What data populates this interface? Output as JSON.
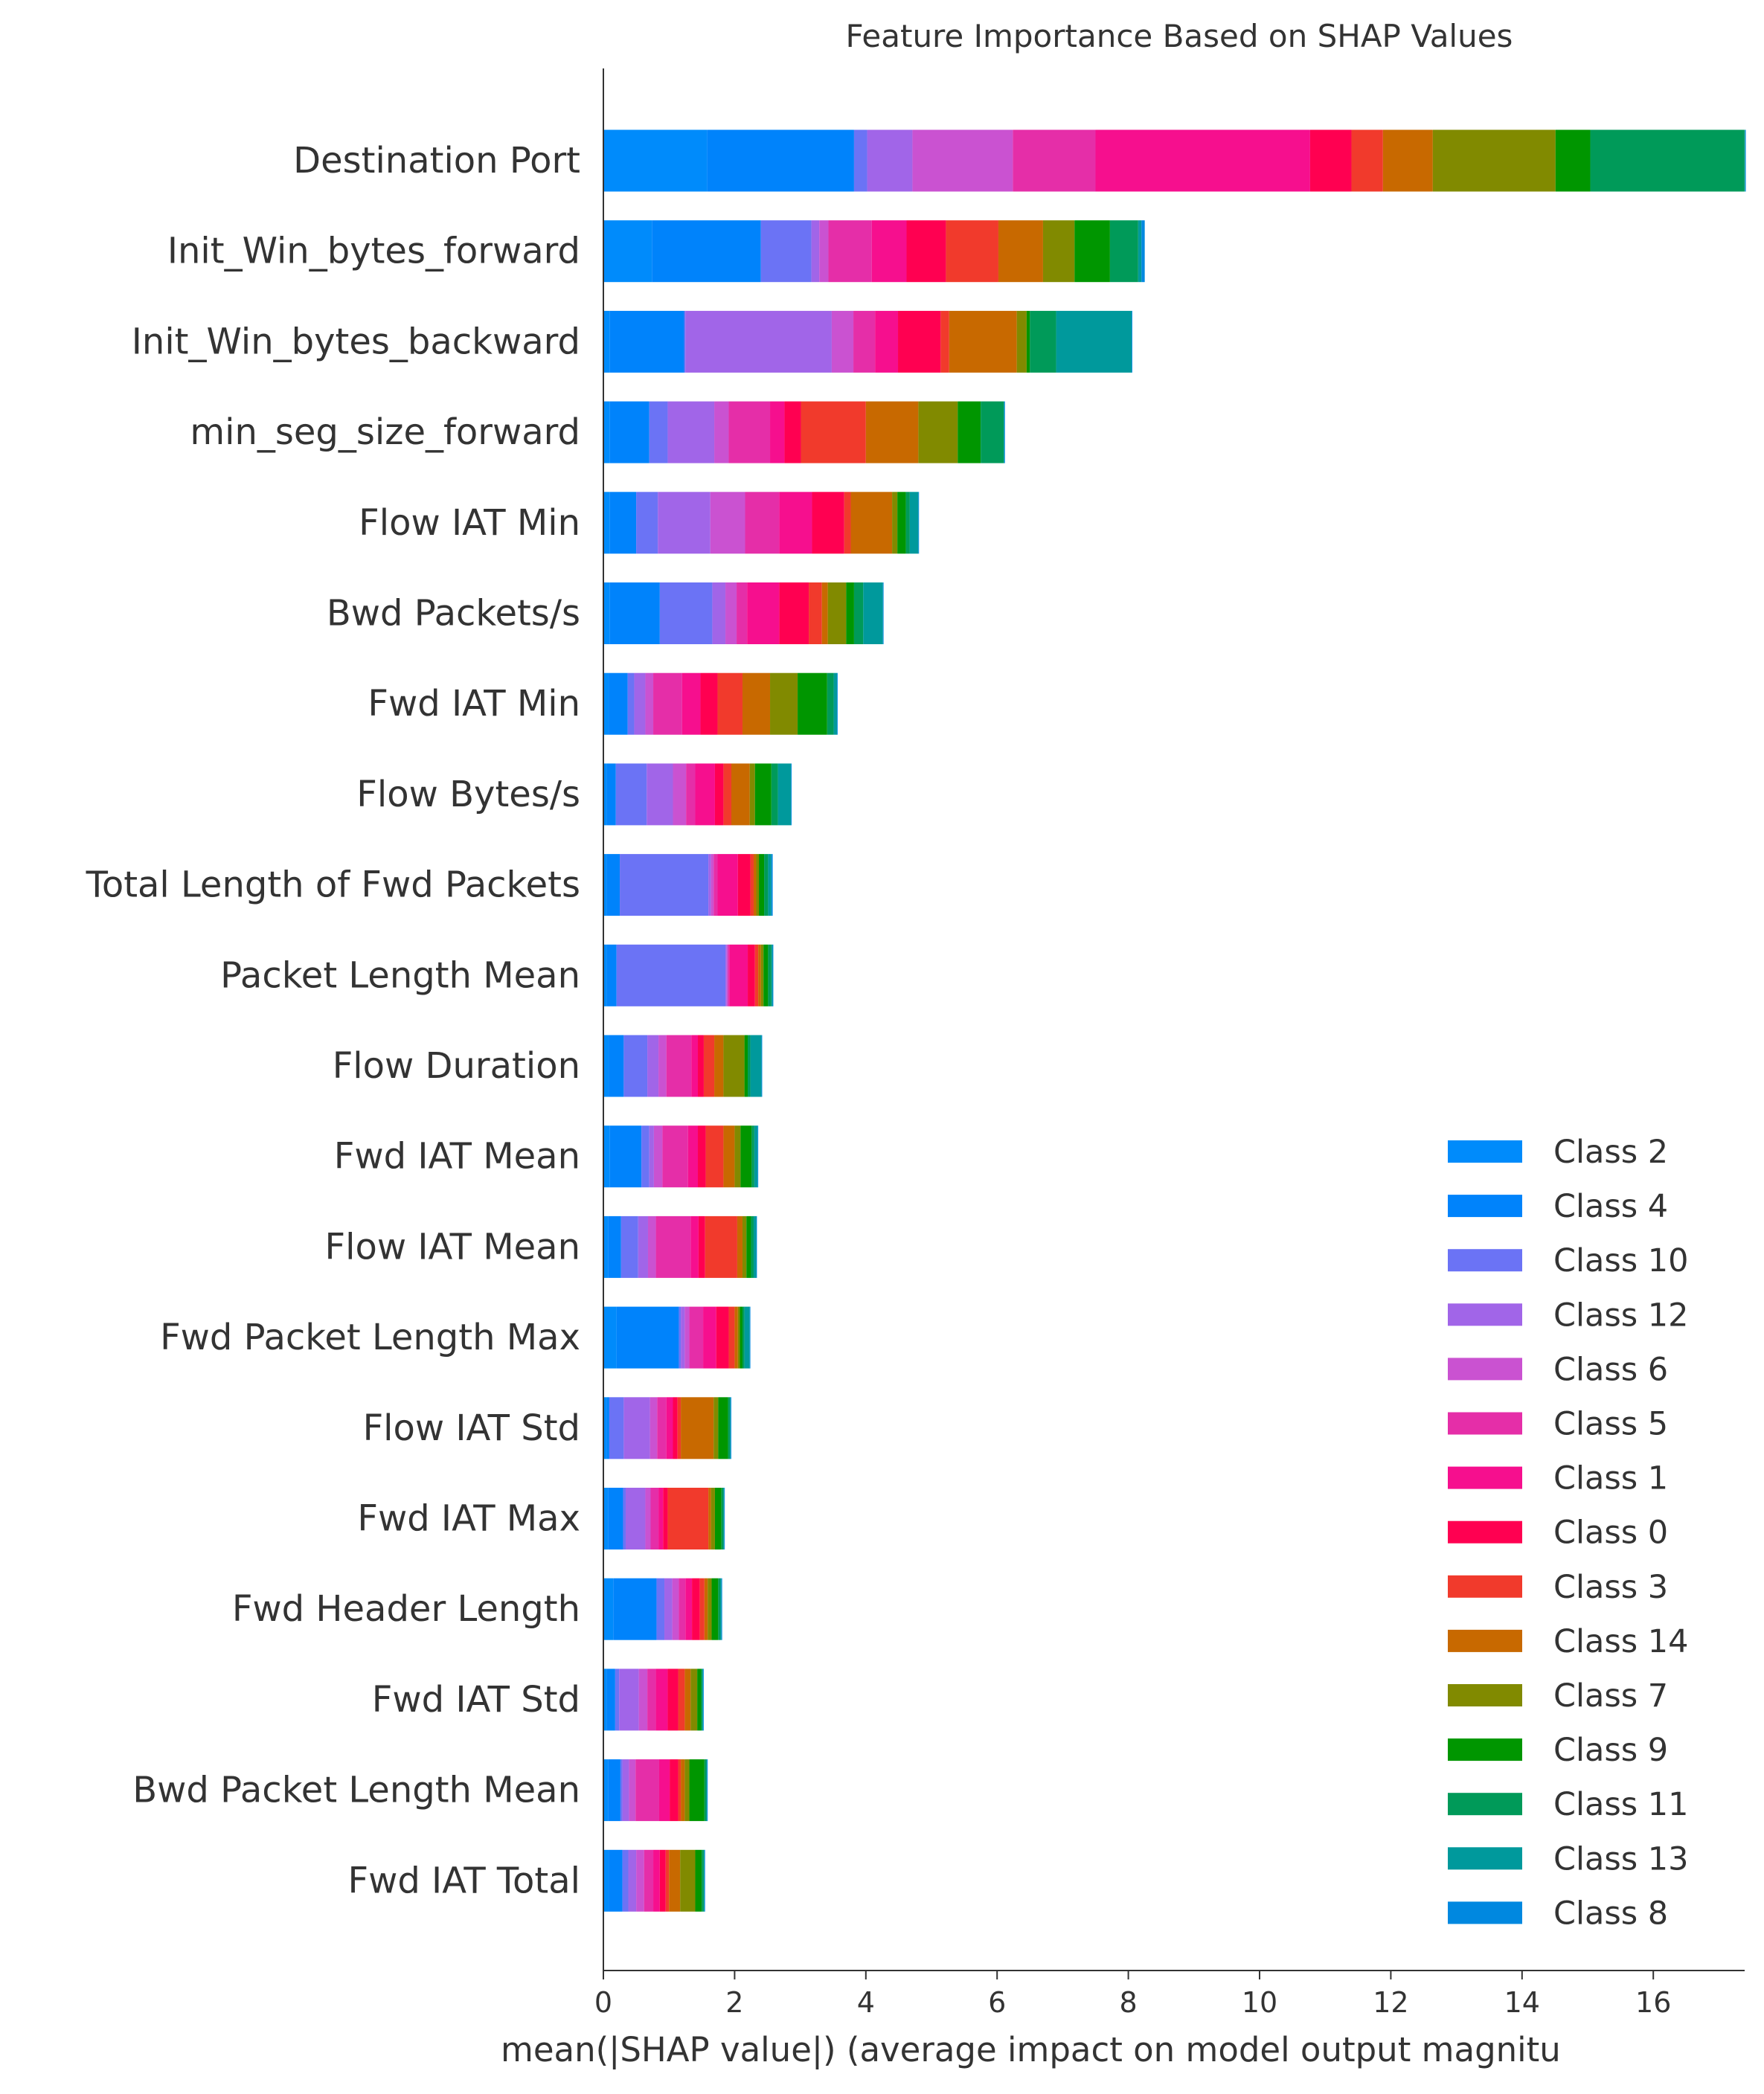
{
  "chart_data": {
    "type": "bar",
    "orientation": "horizontal",
    "stacked": true,
    "title": "Feature Importance Based on SHAP Values",
    "xlabel": "mean(|SHAP value|) (average impact on model output magnitu",
    "ylabel": "",
    "xlim": [
      0,
      17.45
    ],
    "xticks": [
      0,
      2,
      4,
      6,
      8,
      10,
      12,
      14,
      16
    ],
    "grid": false,
    "legend_position": "lower-right",
    "categories": [
      "Destination Port",
      "Init_Win_bytes_forward",
      "Init_Win_bytes_backward",
      "min_seg_size_forward",
      "Flow IAT Min",
      "Bwd Packets/s",
      "Fwd IAT Min",
      "Flow Bytes/s",
      "Total Length of Fwd Packets",
      "Packet Length Mean",
      "Flow Duration",
      "Fwd IAT Mean",
      "Flow IAT Mean",
      "Fwd Packet Length Max",
      "Flow IAT Std",
      "Fwd IAT Max",
      "Fwd Header Length",
      "Fwd IAT Std",
      "Bwd Packet Length Mean",
      "Fwd IAT Total"
    ],
    "series": [
      {
        "name": "Class 2",
        "color": "#008bfb",
        "values": [
          1.58,
          0.74,
          0.1,
          0.1,
          0.1,
          0.1,
          0.08,
          0.05,
          0.05,
          0.05,
          0.08,
          0.1,
          0.07,
          0.2,
          0.05,
          0.07,
          0.15,
          0.05,
          0.07,
          0.08
        ]
      },
      {
        "name": "Class 4",
        "color": "#0083fb",
        "values": [
          2.24,
          1.66,
          1.13,
          0.6,
          0.4,
          0.76,
          0.29,
          0.14,
          0.2,
          0.15,
          0.23,
          0.48,
          0.2,
          0.95,
          0.04,
          0.23,
          0.66,
          0.13,
          0.19,
          0.21
        ]
      },
      {
        "name": "Class 10",
        "color": "#6b73f5",
        "values": [
          0.2,
          0.77,
          0.02,
          0.28,
          0.33,
          0.8,
          0.1,
          0.47,
          1.35,
          1.66,
          0.36,
          0.12,
          0.26,
          0.03,
          0.22,
          0.04,
          0.12,
          0.06,
          0.03,
          0.09
        ]
      },
      {
        "name": "Class 12",
        "color": "#a165e8",
        "values": [
          0.69,
          0.12,
          2.23,
          0.71,
          0.8,
          0.2,
          0.17,
          0.4,
          0.04,
          0.02,
          0.17,
          0.07,
          0.15,
          0.06,
          0.4,
          0.3,
          0.12,
          0.3,
          0.1,
          0.12
        ]
      },
      {
        "name": "Class 6",
        "color": "#ca52d1",
        "values": [
          1.53,
          0.14,
          0.33,
          0.22,
          0.53,
          0.17,
          0.12,
          0.2,
          0.04,
          0.02,
          0.12,
          0.13,
          0.12,
          0.07,
          0.11,
          0.08,
          0.1,
          0.13,
          0.1,
          0.12
        ]
      },
      {
        "name": "Class 5",
        "color": "#e52ea8",
        "values": [
          1.26,
          0.66,
          0.33,
          0.63,
          0.52,
          0.16,
          0.44,
          0.14,
          0.06,
          0.02,
          0.38,
          0.39,
          0.53,
          0.21,
          0.14,
          0.12,
          0.1,
          0.13,
          0.36,
          0.14
        ]
      },
      {
        "name": "Class 1",
        "color": "#f60f8e",
        "values": [
          3.27,
          0.53,
          0.35,
          0.22,
          0.5,
          0.49,
          0.28,
          0.3,
          0.31,
          0.28,
          0.1,
          0.15,
          0.12,
          0.2,
          0.1,
          0.07,
          0.1,
          0.18,
          0.16,
          0.1
        ]
      },
      {
        "name": "Class 0",
        "color": "#ff0051",
        "values": [
          0.63,
          0.6,
          0.65,
          0.25,
          0.49,
          0.45,
          0.26,
          0.13,
          0.19,
          0.11,
          0.09,
          0.12,
          0.1,
          0.19,
          0.07,
          0.07,
          0.12,
          0.16,
          0.13,
          0.09
        ]
      },
      {
        "name": "Class 3",
        "color": "#f13a2c",
        "values": [
          0.48,
          0.8,
          0.13,
          0.99,
          0.1,
          0.2,
          0.38,
          0.12,
          0.05,
          0.05,
          0.16,
          0.27,
          0.49,
          0.09,
          0.05,
          0.62,
          0.07,
          0.1,
          0.04,
          0.05
        ]
      },
      {
        "name": "Class 14",
        "color": "#c86900",
        "values": [
          0.76,
          0.68,
          1.03,
          0.8,
          0.63,
          0.09,
          0.42,
          0.28,
          0.04,
          0.04,
          0.14,
          0.17,
          0.08,
          0.05,
          0.5,
          0.04,
          0.05,
          0.09,
          0.06,
          0.17
        ]
      },
      {
        "name": "Class 7",
        "color": "#818a00",
        "values": [
          1.87,
          0.48,
          0.15,
          0.6,
          0.08,
          0.28,
          0.42,
          0.08,
          0.04,
          0.04,
          0.32,
          0.09,
          0.06,
          0.03,
          0.07,
          0.06,
          0.06,
          0.1,
          0.07,
          0.23
        ]
      },
      {
        "name": "Class 9",
        "color": "#009600",
        "values": [
          0.53,
          0.54,
          0.05,
          0.35,
          0.13,
          0.12,
          0.45,
          0.25,
          0.08,
          0.07,
          0.05,
          0.17,
          0.07,
          0.04,
          0.15,
          0.1,
          0.1,
          0.06,
          0.23,
          0.1
        ]
      },
      {
        "name": "Class 11",
        "color": "#009a59",
        "values": [
          2.35,
          0.43,
          0.4,
          0.35,
          0.06,
          0.14,
          0.1,
          0.1,
          0.06,
          0.05,
          0.04,
          0.04,
          0.04,
          0.03,
          0.03,
          0.03,
          0.03,
          0.02,
          0.03,
          0.03
        ]
      },
      {
        "name": "Class 13",
        "color": "#00999c",
        "values": [
          0.01,
          0.05,
          1.15,
          0.01,
          0.13,
          0.3,
          0.05,
          0.2,
          0.05,
          0.02,
          0.17,
          0.05,
          0.04,
          0.08,
          0.01,
          0.01,
          0.02,
          0.01,
          0.01,
          0.01
        ]
      },
      {
        "name": "Class 8",
        "color": "#0088e0",
        "values": [
          0.01,
          0.05,
          0.01,
          0.01,
          0.01,
          0.01,
          0.01,
          0.01,
          0.02,
          0.01,
          0.01,
          0.01,
          0.01,
          0.01,
          0.01,
          0.01,
          0.01,
          0.01,
          0.01,
          0.01
        ]
      }
    ]
  }
}
